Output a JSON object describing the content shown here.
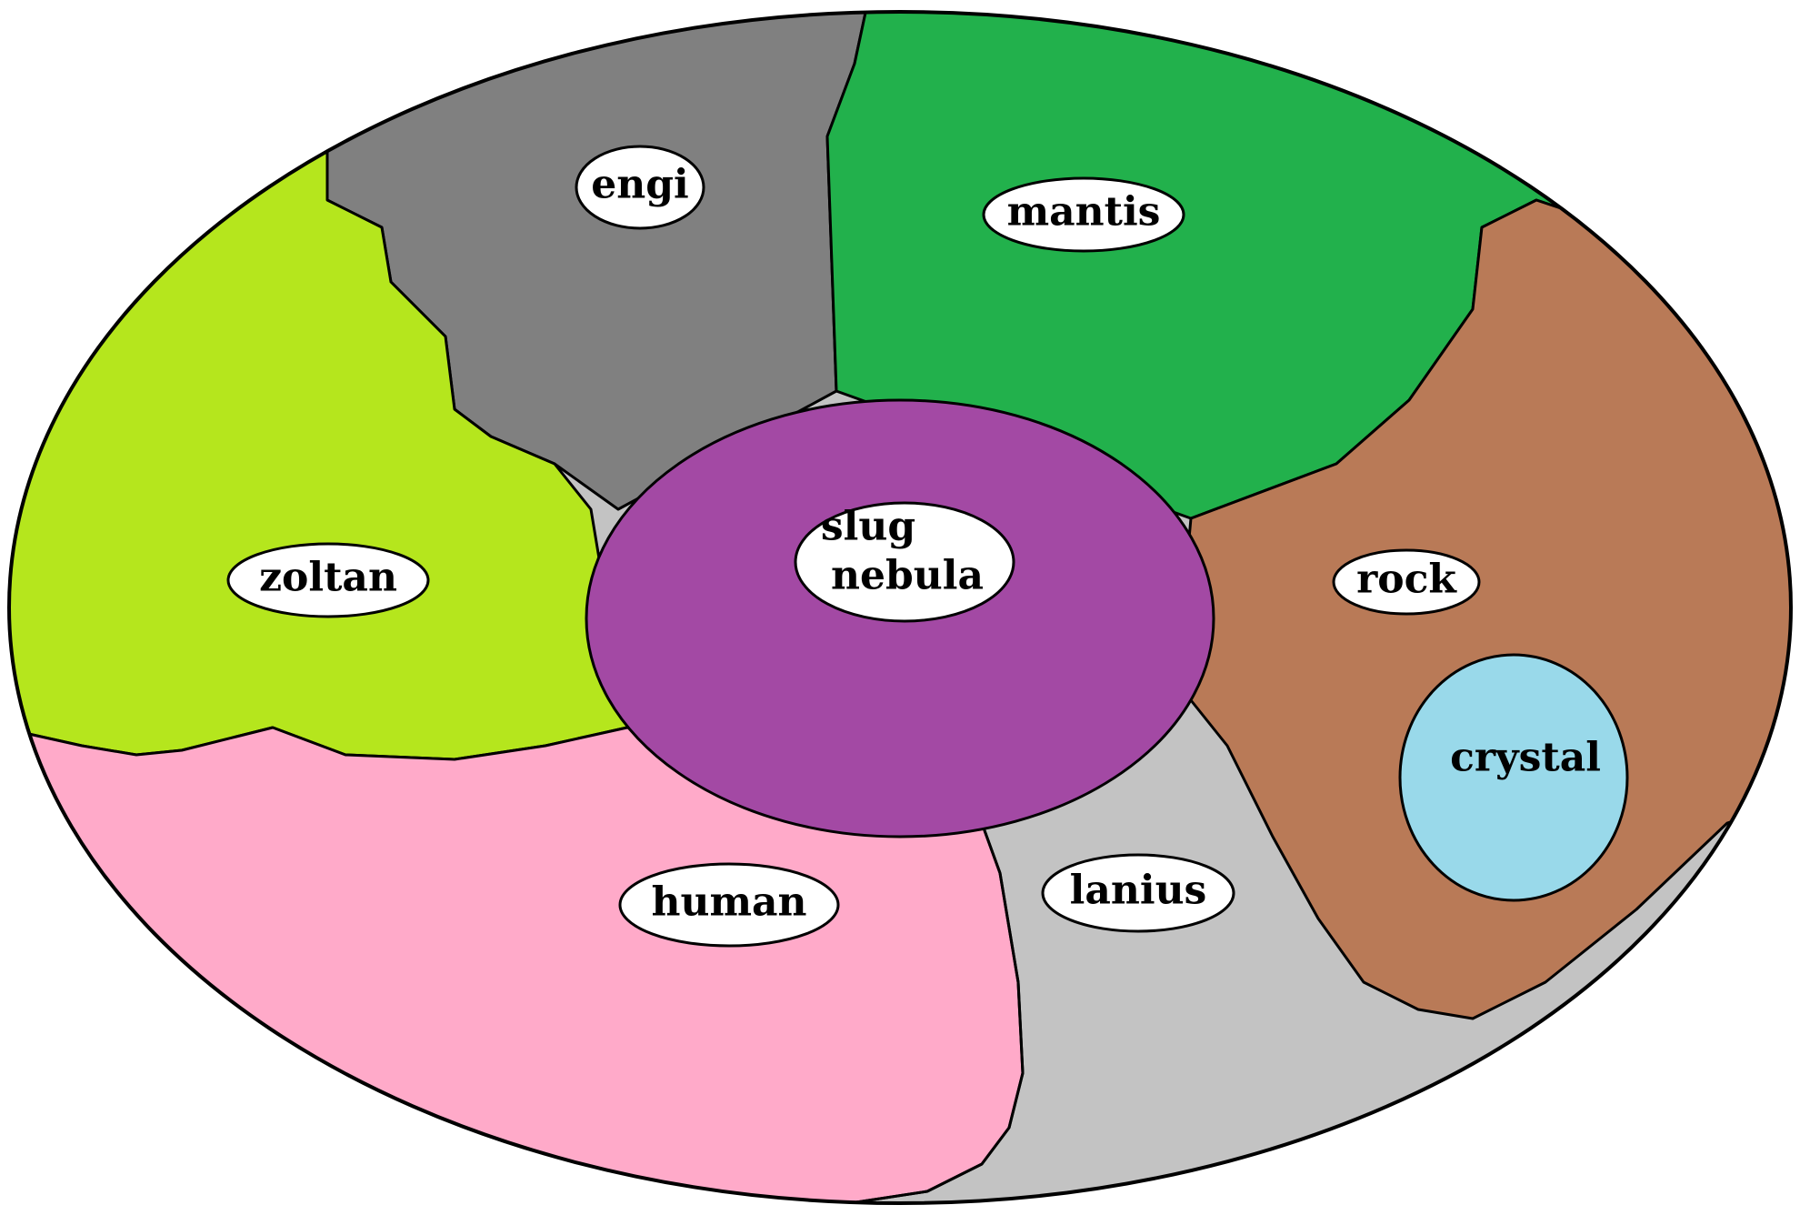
{
  "map": {
    "regions": [
      {
        "id": "engi",
        "label": "engi",
        "color": "#808080"
      },
      {
        "id": "mantis",
        "label": "mantis",
        "color": "#22b14c"
      },
      {
        "id": "zoltan",
        "label": "zoltan",
        "color": "#b5e61d"
      },
      {
        "id": "rock",
        "label": "rock",
        "color": "#b97a57"
      },
      {
        "id": "crystal",
        "label": "crystal",
        "color": "#99d9ea"
      },
      {
        "id": "human",
        "label": "human",
        "color": "#ffaac9"
      },
      {
        "id": "lanius",
        "label": "lanius",
        "color": "#c3c3c3"
      },
      {
        "id": "slug",
        "label_line1": "slug",
        "label_line2": "nebula",
        "color": "#a349a4"
      }
    ]
  }
}
